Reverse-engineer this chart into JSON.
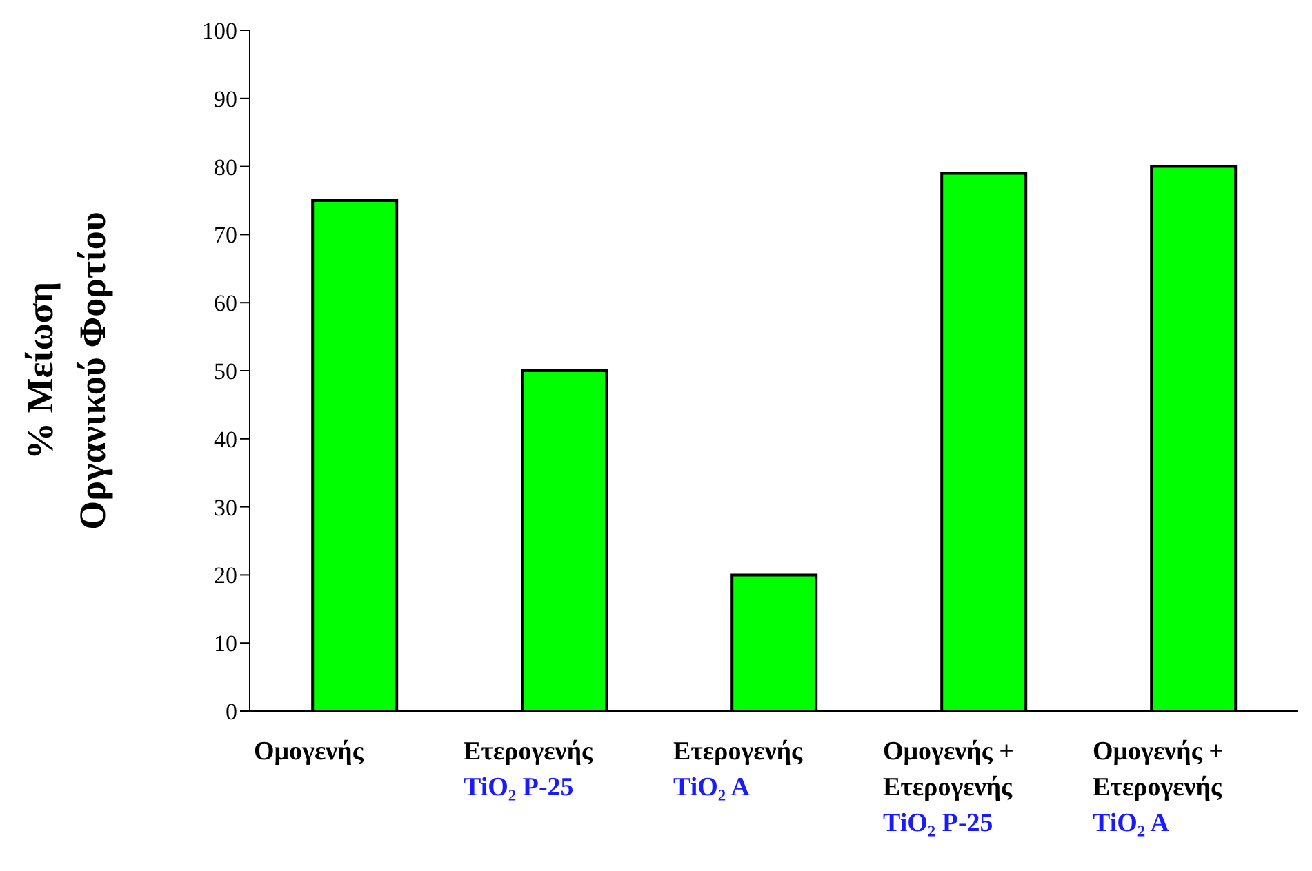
{
  "chart_data": {
    "type": "bar",
    "ylabel": "% Μείωση\nΟργανικού Φορτίου",
    "categories": [
      "Ομογενής",
      "Ετερογενής\nTiO₂ P-25",
      "Ετερογενής\nTiO₂ A",
      "Ομογενής +\nΕτερογενής\nTiO₂ P-25",
      "Ομογενής +\nΕτερογενής\nTiO₂ A"
    ],
    "values": [
      75,
      50,
      20,
      79,
      80
    ],
    "color": "#00ff00",
    "ylim": [
      0,
      100
    ],
    "yticks": [
      0,
      10,
      20,
      30,
      40,
      50,
      60,
      70,
      80,
      90,
      100
    ],
    "grid": false
  }
}
